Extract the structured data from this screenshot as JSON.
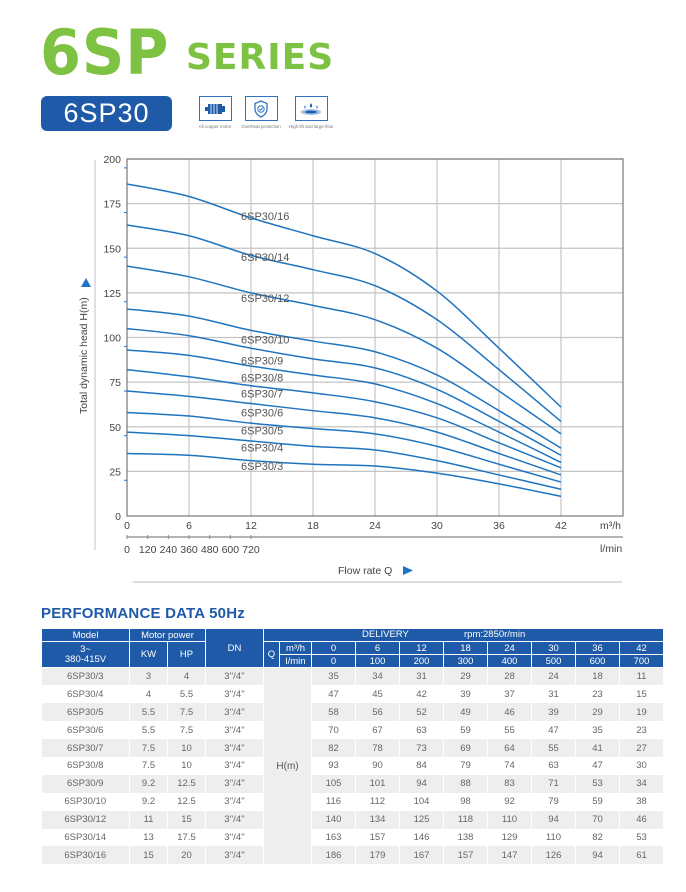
{
  "header": {
    "series_big": "6SP",
    "series_small": "SERIES",
    "model": "6SP30",
    "features": [
      {
        "icon": "copper-motor-icon",
        "label": "All copper motor"
      },
      {
        "icon": "shield-check-icon",
        "label": "Overheat protection"
      },
      {
        "icon": "water-flow-icon",
        "label": "High lift and large flow"
      }
    ]
  },
  "colors": {
    "green": "#7dc242",
    "blue": "#1e5aa8",
    "curve": "#1f74bf",
    "grid": "#bbbbbb"
  },
  "chart_data": {
    "type": "line",
    "title": "",
    "xlabel": "Flow rate Q",
    "ylabel": "Total dynamic head H(m)",
    "x_unit": "m³/h",
    "x2_unit": "l/min",
    "x_ticks": [
      0,
      6,
      12,
      18,
      24,
      30,
      36,
      42
    ],
    "x2_ticks": [
      0,
      120,
      240,
      360,
      480,
      600,
      720
    ],
    "y_ticks": [
      0,
      25,
      50,
      75,
      100,
      125,
      150,
      175,
      200
    ],
    "xlim": [
      0,
      48
    ],
    "ylim": [
      0,
      200
    ],
    "grid": true,
    "x": [
      0,
      6,
      12,
      18,
      24,
      30,
      36,
      42
    ],
    "series": [
      {
        "name": "6SP30/3",
        "values": [
          35,
          34,
          31,
          29,
          28,
          24,
          18,
          11
        ]
      },
      {
        "name": "6SP30/4",
        "values": [
          47,
          45,
          42,
          39,
          37,
          31,
          23,
          15
        ]
      },
      {
        "name": "6SP30/5",
        "values": [
          58,
          56,
          52,
          49,
          46,
          39,
          29,
          19
        ]
      },
      {
        "name": "6SP30/6",
        "values": [
          70,
          67,
          63,
          59,
          55,
          47,
          35,
          23
        ]
      },
      {
        "name": "6SP30/7",
        "values": [
          82,
          78,
          73,
          69,
          64,
          55,
          41,
          27
        ]
      },
      {
        "name": "6SP30/8",
        "values": [
          93,
          90,
          84,
          79,
          74,
          63,
          47,
          30
        ]
      },
      {
        "name": "6SP30/9",
        "values": [
          105,
          101,
          94,
          88,
          83,
          71,
          53,
          34
        ]
      },
      {
        "name": "6SP30/10",
        "values": [
          116,
          112,
          104,
          98,
          92,
          79,
          59,
          38
        ]
      },
      {
        "name": "6SP30/12",
        "values": [
          140,
          134,
          125,
          118,
          110,
          94,
          70,
          46
        ]
      },
      {
        "name": "6SP30/14",
        "values": [
          163,
          157,
          146,
          138,
          129,
          110,
          82,
          53
        ]
      },
      {
        "name": "6SP30/16",
        "values": [
          186,
          179,
          167,
          157,
          147,
          126,
          94,
          61
        ]
      }
    ],
    "curve_labels": [
      {
        "text": "6SP30/16",
        "y": 168
      },
      {
        "text": "6SP30/14",
        "y": 145
      },
      {
        "text": "6SP30/12",
        "y": 122
      },
      {
        "text": "6SP30/10",
        "y": 99
      },
      {
        "text": "6SP30/9",
        "y": 87
      },
      {
        "text": "6SP30/8",
        "y": 77.5
      },
      {
        "text": "6SP30/7",
        "y": 68.5
      },
      {
        "text": "6SP30/6",
        "y": 58
      },
      {
        "text": "6SP30/5",
        "y": 48
      },
      {
        "text": "6SP30/4",
        "y": 38.5
      },
      {
        "text": "6SP30/3",
        "y": 28
      }
    ]
  },
  "performance": {
    "title": "PERFORMANCE DATA 50Hz",
    "headers": {
      "model": "Model",
      "motor_power": "Motor power",
      "dn": "DN",
      "delivery": "DELIVERY",
      "rpm": "rpm:2850r/min",
      "voltage_line1": "3~",
      "voltage_line2": "380-415V",
      "kw": "KW",
      "hp": "HP",
      "q": "Q",
      "m3h": "m³/h",
      "lmin": "l/min",
      "h_label": "H(m)"
    },
    "flow_m3h": [
      "0",
      "6",
      "12",
      "18",
      "24",
      "30",
      "36",
      "42"
    ],
    "flow_lmin": [
      "0",
      "100",
      "200",
      "300",
      "400",
      "500",
      "600",
      "700"
    ],
    "rows": [
      {
        "model": "6SP30/3",
        "kw": "3",
        "hp": "4",
        "dn": "3''/4''",
        "h": [
          "35",
          "34",
          "31",
          "29",
          "28",
          "24",
          "18",
          "11"
        ]
      },
      {
        "model": "6SP30/4",
        "kw": "4",
        "hp": "5.5",
        "dn": "3''/4''",
        "h": [
          "47",
          "45",
          "42",
          "39",
          "37",
          "31",
          "23",
          "15"
        ]
      },
      {
        "model": "6SP30/5",
        "kw": "5.5",
        "hp": "7.5",
        "dn": "3''/4''",
        "h": [
          "58",
          "56",
          "52",
          "49",
          "46",
          "39",
          "29",
          "19"
        ]
      },
      {
        "model": "6SP30/6",
        "kw": "5.5",
        "hp": "7.5",
        "dn": "3''/4''",
        "h": [
          "70",
          "67",
          "63",
          "59",
          "55",
          "47",
          "35",
          "23"
        ]
      },
      {
        "model": "6SP30/7",
        "kw": "7.5",
        "hp": "10",
        "dn": "3''/4''",
        "h": [
          "82",
          "78",
          "73",
          "69",
          "64",
          "55",
          "41",
          "27"
        ]
      },
      {
        "model": "6SP30/8",
        "kw": "7.5",
        "hp": "10",
        "dn": "3''/4''",
        "h": [
          "93",
          "90",
          "84",
          "79",
          "74",
          "63",
          "47",
          "30"
        ]
      },
      {
        "model": "6SP30/9",
        "kw": "9.2",
        "hp": "12.5",
        "dn": "3''/4''",
        "h": [
          "105",
          "101",
          "94",
          "88",
          "83",
          "71",
          "53",
          "34"
        ]
      },
      {
        "model": "6SP30/10",
        "kw": "9.2",
        "hp": "12.5",
        "dn": "3''/4''",
        "h": [
          "116",
          "112",
          "104",
          "98",
          "92",
          "79",
          "59",
          "38"
        ]
      },
      {
        "model": "6SP30/12",
        "kw": "11",
        "hp": "15",
        "dn": "3''/4''",
        "h": [
          "140",
          "134",
          "125",
          "118",
          "110",
          "94",
          "70",
          "46"
        ]
      },
      {
        "model": "6SP30/14",
        "kw": "13",
        "hp": "17.5",
        "dn": "3''/4''",
        "h": [
          "163",
          "157",
          "146",
          "138",
          "129",
          "110",
          "82",
          "53"
        ]
      },
      {
        "model": "6SP30/16",
        "kw": "15",
        "hp": "20",
        "dn": "3''/4''",
        "h": [
          "186",
          "179",
          "167",
          "157",
          "147",
          "126",
          "94",
          "61"
        ]
      }
    ]
  }
}
